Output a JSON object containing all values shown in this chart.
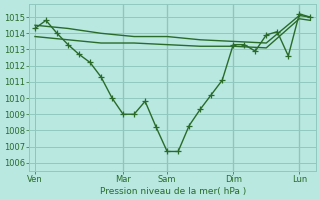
{
  "background_color": "#b8e8e0",
  "grid_color": "#90c8c0",
  "line_color": "#2a6b2a",
  "xlabel": "Pression niveau de la mer( hPa )",
  "ylim": [
    1005.5,
    1015.8
  ],
  "yticks": [
    1006,
    1007,
    1008,
    1009,
    1010,
    1011,
    1012,
    1013,
    1014,
    1015
  ],
  "day_labels": [
    "Ven",
    "Mar",
    "Sam",
    "Dim",
    "Lun"
  ],
  "day_positions": [
    0,
    8,
    12,
    18,
    24
  ],
  "xlim": [
    -0.5,
    25.5
  ],
  "series1_x": [
    0,
    1,
    2,
    3,
    4,
    5,
    6,
    7,
    8,
    9,
    10,
    11,
    12,
    13,
    14,
    15,
    16,
    17,
    18,
    19,
    20,
    21,
    22,
    23,
    24,
    25
  ],
  "series1_y": [
    1014.3,
    1014.8,
    1014.0,
    1013.3,
    1012.7,
    1012.2,
    1011.3,
    1010.0,
    1009.0,
    1009.0,
    1009.8,
    1008.2,
    1006.7,
    1006.7,
    1008.3,
    1009.3,
    1010.2,
    1011.1,
    1013.3,
    1013.3,
    1012.9,
    1013.9,
    1014.1,
    1012.6,
    1015.2,
    1015.0
  ],
  "series2_x": [
    0,
    3,
    6,
    9,
    12,
    15,
    18,
    21,
    24,
    25
  ],
  "series2_y": [
    1014.5,
    1014.3,
    1014.0,
    1013.8,
    1013.8,
    1013.6,
    1013.5,
    1013.4,
    1015.1,
    1015.0
  ],
  "series3_x": [
    0,
    3,
    6,
    9,
    12,
    15,
    18,
    21,
    24,
    25
  ],
  "series3_y": [
    1013.8,
    1013.6,
    1013.4,
    1013.4,
    1013.3,
    1013.2,
    1013.2,
    1013.1,
    1014.9,
    1014.8
  ],
  "vline_color": "#507868",
  "vline_positions": [
    8,
    12,
    18,
    24
  ]
}
